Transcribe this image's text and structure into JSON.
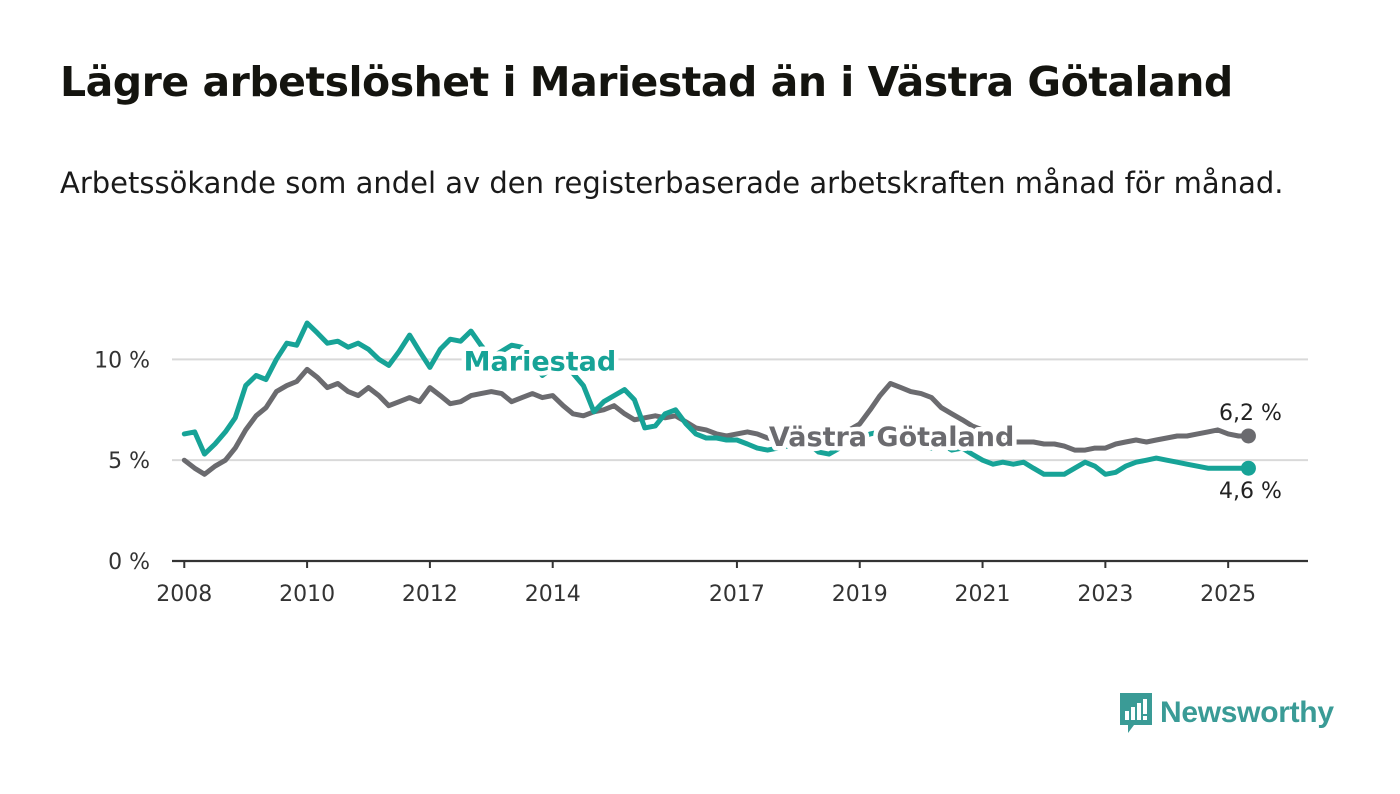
{
  "title": "Lägre arbetslöshet i Mariestad än i Västra Götaland",
  "subtitle": "Arbetssökande som andel av den registerbaserade arbetskraften månad för månad.",
  "logo_text": "Newsworthy",
  "chart_data": {
    "type": "line",
    "title": "Lägre arbetslöshet i Mariestad än i Västra Götaland",
    "subtitle": "Arbetssökande som andel av den registerbaserade arbetskraften månad för månad.",
    "xlabel": "",
    "ylabel": "",
    "x_ticks": [
      "2008",
      "2010",
      "2012",
      "2014",
      "2017",
      "2019",
      "2021",
      "2023",
      "2025"
    ],
    "y_ticks": [
      "0 %",
      "5 %",
      "10 %"
    ],
    "y_tick_values": [
      0,
      5,
      10
    ],
    "ylim": [
      0,
      12
    ],
    "xlim": [
      2007.8,
      2026.3
    ],
    "grid": true,
    "series": [
      {
        "name": "Mariestad",
        "color": "#17a397",
        "end_label": "4,6 %",
        "x": [
          2008.0,
          2008.17,
          2008.33,
          2008.5,
          2008.67,
          2008.83,
          2009.0,
          2009.17,
          2009.33,
          2009.5,
          2009.67,
          2009.83,
          2010.0,
          2010.17,
          2010.33,
          2010.5,
          2010.67,
          2010.83,
          2011.0,
          2011.17,
          2011.33,
          2011.5,
          2011.67,
          2011.83,
          2012.0,
          2012.17,
          2012.33,
          2012.5,
          2012.67,
          2012.83,
          2013.0,
          2013.17,
          2013.33,
          2013.5,
          2013.67,
          2013.83,
          2014.0,
          2014.17,
          2014.33,
          2014.5,
          2014.67,
          2014.83,
          2015.0,
          2015.17,
          2015.33,
          2015.5,
          2015.67,
          2015.83,
          2016.0,
          2016.17,
          2016.33,
          2016.5,
          2016.67,
          2016.83,
          2017.0,
          2017.17,
          2017.33,
          2017.5,
          2017.67,
          2017.83,
          2018.0,
          2018.17,
          2018.33,
          2018.5,
          2018.67,
          2018.83,
          2019.0,
          2019.17,
          2019.33,
          2019.5,
          2019.67,
          2019.83,
          2020.0,
          2020.17,
          2020.33,
          2020.5,
          2020.67,
          2020.83,
          2021.0,
          2021.17,
          2021.33,
          2021.5,
          2021.67,
          2021.83,
          2022.0,
          2022.17,
          2022.33,
          2022.5,
          2022.67,
          2022.83,
          2023.0,
          2023.17,
          2023.33,
          2023.5,
          2023.67,
          2023.83,
          2024.0,
          2024.17,
          2024.33,
          2024.5,
          2024.67,
          2024.83,
          2025.0,
          2025.17,
          2025.33
        ],
        "values": [
          6.3,
          6.4,
          5.3,
          5.8,
          6.4,
          7.1,
          8.7,
          9.2,
          9.0,
          10.0,
          10.8,
          10.7,
          11.8,
          11.3,
          10.8,
          10.9,
          10.6,
          10.8,
          10.5,
          10.0,
          9.7,
          10.4,
          11.2,
          10.4,
          9.6,
          10.5,
          11.0,
          10.9,
          11.4,
          10.7,
          10.1,
          10.4,
          10.7,
          10.6,
          9.9,
          9.2,
          9.6,
          9.8,
          9.3,
          8.7,
          7.4,
          7.9,
          8.2,
          8.5,
          8.0,
          6.6,
          6.7,
          7.3,
          7.5,
          6.8,
          6.3,
          6.1,
          6.1,
          6.0,
          6.0,
          5.8,
          5.6,
          5.5,
          5.6,
          5.7,
          6.0,
          5.8,
          5.4,
          5.3,
          5.6,
          5.9,
          6.1,
          6.3,
          6.4,
          6.3,
          6.1,
          5.9,
          5.7,
          5.6,
          5.8,
          5.5,
          5.6,
          5.3,
          5.0,
          4.8,
          4.9,
          4.8,
          4.9,
          4.6,
          4.3,
          4.3,
          4.3,
          4.6,
          4.9,
          4.7,
          4.3,
          4.4,
          4.7,
          4.9,
          5.0,
          5.1,
          5.0,
          4.9,
          4.8,
          4.7,
          4.6,
          4.6,
          4.6,
          4.6,
          4.6
        ]
      },
      {
        "name": "Västra Götaland",
        "color": "#6b6b6f",
        "end_label": "6,2 %",
        "x": [
          2008.0,
          2008.17,
          2008.33,
          2008.5,
          2008.67,
          2008.83,
          2009.0,
          2009.17,
          2009.33,
          2009.5,
          2009.67,
          2009.83,
          2010.0,
          2010.17,
          2010.33,
          2010.5,
          2010.67,
          2010.83,
          2011.0,
          2011.17,
          2011.33,
          2011.5,
          2011.67,
          2011.83,
          2012.0,
          2012.17,
          2012.33,
          2012.5,
          2012.67,
          2012.83,
          2013.0,
          2013.17,
          2013.33,
          2013.5,
          2013.67,
          2013.83,
          2014.0,
          2014.17,
          2014.33,
          2014.5,
          2014.67,
          2014.83,
          2015.0,
          2015.17,
          2015.33,
          2015.5,
          2015.67,
          2015.83,
          2016.0,
          2016.17,
          2016.33,
          2016.5,
          2016.67,
          2016.83,
          2017.0,
          2017.17,
          2017.33,
          2017.5,
          2017.67,
          2017.83,
          2018.0,
          2018.17,
          2018.33,
          2018.5,
          2018.67,
          2018.83,
          2019.0,
          2019.17,
          2019.33,
          2019.5,
          2019.67,
          2019.83,
          2020.0,
          2020.17,
          2020.33,
          2020.5,
          2020.67,
          2020.83,
          2021.0,
          2021.17,
          2021.33,
          2021.5,
          2021.67,
          2021.83,
          2022.0,
          2022.17,
          2022.33,
          2022.5,
          2022.67,
          2022.83,
          2023.0,
          2023.17,
          2023.33,
          2023.5,
          2023.67,
          2023.83,
          2024.0,
          2024.17,
          2024.33,
          2024.5,
          2024.67,
          2024.83,
          2025.0,
          2025.17,
          2025.33
        ],
        "values": [
          5.0,
          4.6,
          4.3,
          4.7,
          5.0,
          5.6,
          6.5,
          7.2,
          7.6,
          8.4,
          8.7,
          8.9,
          9.5,
          9.1,
          8.6,
          8.8,
          8.4,
          8.2,
          8.6,
          8.2,
          7.7,
          7.9,
          8.1,
          7.9,
          8.6,
          8.2,
          7.8,
          7.9,
          8.2,
          8.3,
          8.4,
          8.3,
          7.9,
          8.1,
          8.3,
          8.1,
          8.2,
          7.7,
          7.3,
          7.2,
          7.4,
          7.5,
          7.7,
          7.3,
          7.0,
          7.1,
          7.2,
          7.1,
          7.2,
          6.9,
          6.6,
          6.5,
          6.3,
          6.2,
          6.3,
          6.4,
          6.3,
          6.1,
          6.0,
          6.0,
          6.1,
          6.0,
          5.9,
          6.0,
          6.2,
          6.5,
          6.8,
          7.5,
          8.2,
          8.8,
          8.6,
          8.4,
          8.3,
          8.1,
          7.6,
          7.3,
          7.0,
          6.7,
          6.5,
          6.3,
          6.1,
          5.9,
          5.9,
          5.9,
          5.8,
          5.8,
          5.7,
          5.5,
          5.5,
          5.6,
          5.6,
          5.8,
          5.9,
          6.0,
          5.9,
          6.0,
          6.1,
          6.2,
          6.2,
          6.3,
          6.4,
          6.5,
          6.3,
          6.2,
          6.2
        ]
      }
    ]
  }
}
